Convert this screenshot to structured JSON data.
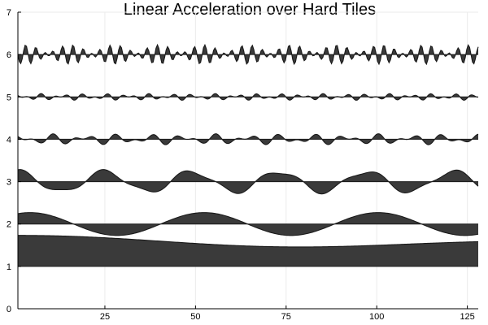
{
  "chart_data": {
    "type": "area",
    "title": "Linear Acceleration over Hard Tiles",
    "xlabel": "",
    "ylabel": "",
    "xlim": [
      1,
      128
    ],
    "ylim": [
      0,
      7
    ],
    "xticks": [
      25,
      50,
      75,
      100,
      125
    ],
    "yticks": [
      0,
      1,
      2,
      3,
      4,
      5,
      6,
      7
    ],
    "grid": true,
    "colors": {
      "fill": "#3a3a3a",
      "line": "#1a1a1a"
    },
    "series": [
      {
        "baseline": 1,
        "components": [
          {
            "amp": 0.1,
            "period": 250,
            "phase": 2.2
          },
          {
            "amp": 0.06,
            "period": 120,
            "phase": 1.0
          }
        ],
        "offset": 0.6
      },
      {
        "baseline": 2,
        "components": [
          {
            "amp": 0.27,
            "period": 48,
            "phase": 1.0
          }
        ],
        "offset": 0.0
      },
      {
        "baseline": 3,
        "components": [
          {
            "amp": 0.24,
            "period": 24,
            "phase": 1.3
          },
          {
            "amp": 0.05,
            "period": 11,
            "phase": 0.4
          }
        ],
        "offset": 0.0
      },
      {
        "baseline": 4,
        "components": [
          {
            "amp": 0.07,
            "period": 9,
            "phase": 0.5
          },
          {
            "amp": 0.06,
            "period": 5.6,
            "phase": 2.0
          }
        ],
        "offset": 0.0
      },
      {
        "baseline": 5,
        "components": [
          {
            "amp": 0.04,
            "period": 6,
            "phase": 0.2
          },
          {
            "amp": 0.04,
            "period": 3.7,
            "phase": 1.5
          }
        ],
        "offset": 0.0
      },
      {
        "baseline": 6,
        "components": [
          {
            "amp": 0.13,
            "period": 2.6,
            "phase": 0.3
          },
          {
            "amp": 0.1,
            "period": 3.3,
            "phase": 1.9
          }
        ],
        "offset": 0.0
      }
    ]
  }
}
